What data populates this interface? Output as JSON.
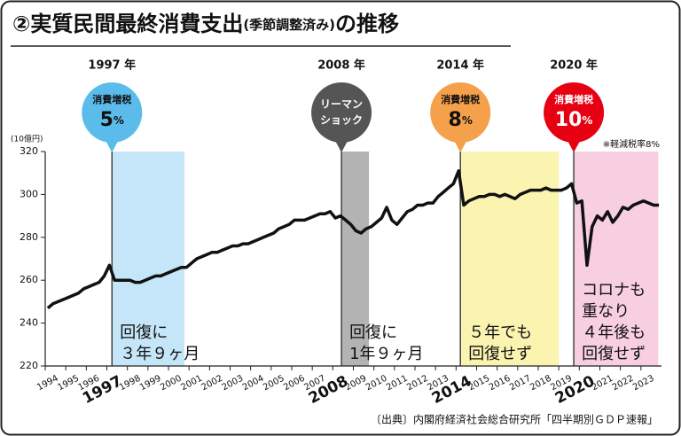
{
  "chart_data": {
    "type": "line",
    "title": [
      "②実質民間最終消費支出",
      "(季節調整済み)",
      "の推移"
    ],
    "y_unit": "(10億円)",
    "note": "※軽減税率8%",
    "source": "〔出典〕内閣府経済社会総合研究所「四半期別ＧＤＰ速報」",
    "xlim": [
      1994,
      2024
    ],
    "ylim": [
      220,
      320
    ],
    "yticks": [
      220,
      240,
      260,
      280,
      300,
      320
    ],
    "xticks": [
      1994,
      1995,
      1996,
      1997,
      1998,
      1999,
      2000,
      2001,
      2002,
      2003,
      2004,
      2005,
      2006,
      2007,
      2008,
      2009,
      2010,
      2011,
      2012,
      2013,
      2014,
      2015,
      2016,
      2017,
      2018,
      2019,
      2020,
      2021,
      2022,
      2023
    ],
    "emphasized_xticks": [
      3,
      14,
      20,
      26
    ],
    "series": [
      {
        "color": "#111111",
        "x": [
          1994.125,
          1994.375,
          1994.625,
          1994.875,
          1995.125,
          1995.375,
          1995.625,
          1995.875,
          1996.125,
          1996.375,
          1996.625,
          1996.875,
          1997.125,
          1997.375,
          1997.625,
          1997.875,
          1998.125,
          1998.375,
          1998.625,
          1998.875,
          1999.125,
          1999.375,
          1999.625,
          1999.875,
          2000.125,
          2000.375,
          2000.625,
          2000.875,
          2001.125,
          2001.375,
          2001.625,
          2001.875,
          2002.125,
          2002.375,
          2002.625,
          2002.875,
          2003.125,
          2003.375,
          2003.625,
          2003.875,
          2004.125,
          2004.375,
          2004.625,
          2004.875,
          2005.125,
          2005.375,
          2005.625,
          2005.875,
          2006.125,
          2006.375,
          2006.625,
          2006.875,
          2007.125,
          2007.375,
          2007.625,
          2007.875,
          2008.125,
          2008.375,
          2008.625,
          2008.875,
          2009.125,
          2009.375,
          2009.625,
          2009.875,
          2010.125,
          2010.375,
          2010.625,
          2010.875,
          2011.125,
          2011.375,
          2011.625,
          2011.875,
          2012.125,
          2012.375,
          2012.625,
          2012.875,
          2013.125,
          2013.375,
          2013.625,
          2013.875,
          2014.125,
          2014.375,
          2014.625,
          2014.875,
          2015.125,
          2015.375,
          2015.625,
          2015.875,
          2016.125,
          2016.375,
          2016.625,
          2016.875,
          2017.125,
          2017.375,
          2017.625,
          2017.875,
          2018.125,
          2018.375,
          2018.625,
          2018.875,
          2019.125,
          2019.375,
          2019.625,
          2019.875,
          2020.125,
          2020.375,
          2020.625,
          2020.875,
          2021.125,
          2021.375,
          2021.625,
          2021.875,
          2022.125,
          2022.375,
          2022.625,
          2022.875,
          2023.125,
          2023.375,
          2023.625,
          2023.875
        ],
        "values": [
          247,
          249,
          250,
          251,
          252,
          253,
          254,
          256,
          257,
          258,
          259,
          262,
          267,
          260,
          260,
          260,
          260,
          259,
          259,
          260,
          261,
          262,
          262,
          263,
          264,
          265,
          266,
          266,
          268,
          270,
          271,
          272,
          273,
          273,
          274,
          275,
          276,
          276,
          277,
          277,
          278,
          279,
          280,
          281,
          282,
          284,
          285,
          286,
          288,
          288,
          288,
          289,
          290,
          291,
          291,
          292,
          289,
          290,
          288,
          286,
          283,
          282,
          284,
          285,
          287,
          289,
          294,
          288,
          286,
          289,
          292,
          293,
          295,
          295,
          296,
          296,
          299,
          301,
          303,
          305,
          311,
          295,
          297,
          298,
          299,
          299,
          300,
          300,
          299,
          300,
          299,
          298,
          300,
          301,
          302,
          302,
          302,
          303,
          302,
          302,
          302,
          303,
          305,
          296,
          297,
          267,
          285,
          290,
          288,
          292,
          287,
          290,
          294,
          293,
          295,
          296,
          297,
          296,
          295,
          295
        ]
      }
    ],
    "regions": [
      {
        "start": 1997.25,
        "end": 2000.78,
        "color": "#c5e6f8",
        "label": [
          "回復に",
          "３年９ヶ月"
        ]
      },
      {
        "start": 2008.42,
        "end": 2009.76,
        "color": "#b3b3b3",
        "label": [
          "回復に",
          "1年９ヶ月"
        ]
      },
      {
        "start": 2014.21,
        "end": 2019.0,
        "color": "#fbf4b0",
        "label": [
          "５年でも",
          "回復せず"
        ]
      },
      {
        "start": 2019.73,
        "end": 2023.84,
        "color": "#f8cfe1",
        "label": [
          "コロナも",
          "重なり",
          "４年後も",
          "回復せず"
        ]
      }
    ],
    "events": [
      {
        "year": "1997 年",
        "color": "#5bbbea",
        "lines": [
          "消費増税"
        ],
        "rate": "5",
        "unit": "%"
      },
      {
        "year": "2008 年",
        "color": "#555555",
        "lines": [
          "リーマン",
          "ショック"
        ]
      },
      {
        "year": "2014 年",
        "color": "#f5a04a",
        "lines": [
          "消費増税"
        ],
        "rate": "8",
        "unit": "%"
      },
      {
        "year": "2020 年",
        "color": "#e60012",
        "lines": [
          "消費増税"
        ],
        "rate": "10",
        "unit": "%"
      }
    ]
  }
}
